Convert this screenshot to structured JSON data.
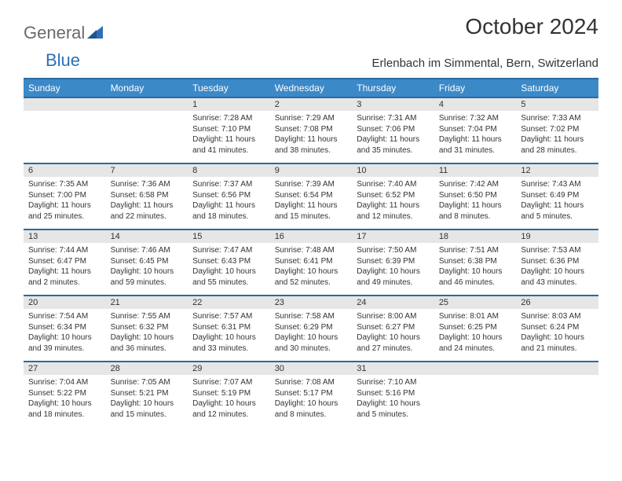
{
  "logo": {
    "text1": "General",
    "text2": "Blue"
  },
  "title": "October 2024",
  "subtitle": "Erlenbach im Simmental, Bern, Switzerland",
  "colors": {
    "header_bg": "#3c89c8",
    "header_border": "#2c6aa0",
    "daynum_bg": "#e6e6e6",
    "text": "#333333",
    "logo_gray": "#6a6a6a",
    "logo_blue": "#2f6fb6"
  },
  "day_headers": [
    "Sunday",
    "Monday",
    "Tuesday",
    "Wednesday",
    "Thursday",
    "Friday",
    "Saturday"
  ],
  "weeks": [
    [
      null,
      null,
      {
        "n": "1",
        "sunrise": "Sunrise: 7:28 AM",
        "sunset": "Sunset: 7:10 PM",
        "daylight": "Daylight: 11 hours and 41 minutes."
      },
      {
        "n": "2",
        "sunrise": "Sunrise: 7:29 AM",
        "sunset": "Sunset: 7:08 PM",
        "daylight": "Daylight: 11 hours and 38 minutes."
      },
      {
        "n": "3",
        "sunrise": "Sunrise: 7:31 AM",
        "sunset": "Sunset: 7:06 PM",
        "daylight": "Daylight: 11 hours and 35 minutes."
      },
      {
        "n": "4",
        "sunrise": "Sunrise: 7:32 AM",
        "sunset": "Sunset: 7:04 PM",
        "daylight": "Daylight: 11 hours and 31 minutes."
      },
      {
        "n": "5",
        "sunrise": "Sunrise: 7:33 AM",
        "sunset": "Sunset: 7:02 PM",
        "daylight": "Daylight: 11 hours and 28 minutes."
      }
    ],
    [
      {
        "n": "6",
        "sunrise": "Sunrise: 7:35 AM",
        "sunset": "Sunset: 7:00 PM",
        "daylight": "Daylight: 11 hours and 25 minutes."
      },
      {
        "n": "7",
        "sunrise": "Sunrise: 7:36 AM",
        "sunset": "Sunset: 6:58 PM",
        "daylight": "Daylight: 11 hours and 22 minutes."
      },
      {
        "n": "8",
        "sunrise": "Sunrise: 7:37 AM",
        "sunset": "Sunset: 6:56 PM",
        "daylight": "Daylight: 11 hours and 18 minutes."
      },
      {
        "n": "9",
        "sunrise": "Sunrise: 7:39 AM",
        "sunset": "Sunset: 6:54 PM",
        "daylight": "Daylight: 11 hours and 15 minutes."
      },
      {
        "n": "10",
        "sunrise": "Sunrise: 7:40 AM",
        "sunset": "Sunset: 6:52 PM",
        "daylight": "Daylight: 11 hours and 12 minutes."
      },
      {
        "n": "11",
        "sunrise": "Sunrise: 7:42 AM",
        "sunset": "Sunset: 6:50 PM",
        "daylight": "Daylight: 11 hours and 8 minutes."
      },
      {
        "n": "12",
        "sunrise": "Sunrise: 7:43 AM",
        "sunset": "Sunset: 6:49 PM",
        "daylight": "Daylight: 11 hours and 5 minutes."
      }
    ],
    [
      {
        "n": "13",
        "sunrise": "Sunrise: 7:44 AM",
        "sunset": "Sunset: 6:47 PM",
        "daylight": "Daylight: 11 hours and 2 minutes."
      },
      {
        "n": "14",
        "sunrise": "Sunrise: 7:46 AM",
        "sunset": "Sunset: 6:45 PM",
        "daylight": "Daylight: 10 hours and 59 minutes."
      },
      {
        "n": "15",
        "sunrise": "Sunrise: 7:47 AM",
        "sunset": "Sunset: 6:43 PM",
        "daylight": "Daylight: 10 hours and 55 minutes."
      },
      {
        "n": "16",
        "sunrise": "Sunrise: 7:48 AM",
        "sunset": "Sunset: 6:41 PM",
        "daylight": "Daylight: 10 hours and 52 minutes."
      },
      {
        "n": "17",
        "sunrise": "Sunrise: 7:50 AM",
        "sunset": "Sunset: 6:39 PM",
        "daylight": "Daylight: 10 hours and 49 minutes."
      },
      {
        "n": "18",
        "sunrise": "Sunrise: 7:51 AM",
        "sunset": "Sunset: 6:38 PM",
        "daylight": "Daylight: 10 hours and 46 minutes."
      },
      {
        "n": "19",
        "sunrise": "Sunrise: 7:53 AM",
        "sunset": "Sunset: 6:36 PM",
        "daylight": "Daylight: 10 hours and 43 minutes."
      }
    ],
    [
      {
        "n": "20",
        "sunrise": "Sunrise: 7:54 AM",
        "sunset": "Sunset: 6:34 PM",
        "daylight": "Daylight: 10 hours and 39 minutes."
      },
      {
        "n": "21",
        "sunrise": "Sunrise: 7:55 AM",
        "sunset": "Sunset: 6:32 PM",
        "daylight": "Daylight: 10 hours and 36 minutes."
      },
      {
        "n": "22",
        "sunrise": "Sunrise: 7:57 AM",
        "sunset": "Sunset: 6:31 PM",
        "daylight": "Daylight: 10 hours and 33 minutes."
      },
      {
        "n": "23",
        "sunrise": "Sunrise: 7:58 AM",
        "sunset": "Sunset: 6:29 PM",
        "daylight": "Daylight: 10 hours and 30 minutes."
      },
      {
        "n": "24",
        "sunrise": "Sunrise: 8:00 AM",
        "sunset": "Sunset: 6:27 PM",
        "daylight": "Daylight: 10 hours and 27 minutes."
      },
      {
        "n": "25",
        "sunrise": "Sunrise: 8:01 AM",
        "sunset": "Sunset: 6:25 PM",
        "daylight": "Daylight: 10 hours and 24 minutes."
      },
      {
        "n": "26",
        "sunrise": "Sunrise: 8:03 AM",
        "sunset": "Sunset: 6:24 PM",
        "daylight": "Daylight: 10 hours and 21 minutes."
      }
    ],
    [
      {
        "n": "27",
        "sunrise": "Sunrise: 7:04 AM",
        "sunset": "Sunset: 5:22 PM",
        "daylight": "Daylight: 10 hours and 18 minutes."
      },
      {
        "n": "28",
        "sunrise": "Sunrise: 7:05 AM",
        "sunset": "Sunset: 5:21 PM",
        "daylight": "Daylight: 10 hours and 15 minutes."
      },
      {
        "n": "29",
        "sunrise": "Sunrise: 7:07 AM",
        "sunset": "Sunset: 5:19 PM",
        "daylight": "Daylight: 10 hours and 12 minutes."
      },
      {
        "n": "30",
        "sunrise": "Sunrise: 7:08 AM",
        "sunset": "Sunset: 5:17 PM",
        "daylight": "Daylight: 10 hours and 8 minutes."
      },
      {
        "n": "31",
        "sunrise": "Sunrise: 7:10 AM",
        "sunset": "Sunset: 5:16 PM",
        "daylight": "Daylight: 10 hours and 5 minutes."
      },
      null,
      null
    ]
  ]
}
